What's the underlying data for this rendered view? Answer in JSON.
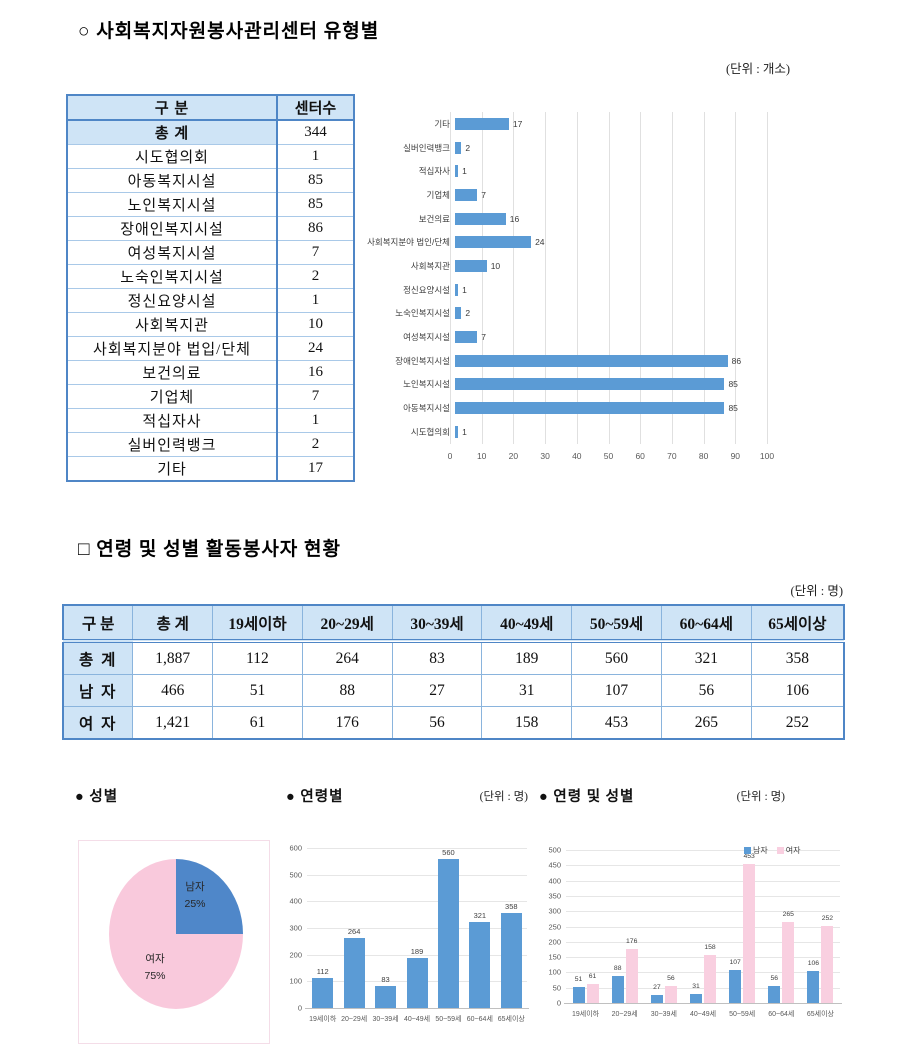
{
  "section1": {
    "title": "○ 사회복지자원봉사관리센터 유형별",
    "unit": "(단위 : 개소)",
    "table": {
      "headers": [
        "구   분",
        "센터수"
      ],
      "total_row": {
        "label": "총   계",
        "value": "344"
      },
      "rows": [
        {
          "label": "시도협의회",
          "value": "1"
        },
        {
          "label": "아동복지시설",
          "value": "85"
        },
        {
          "label": "노인복지시설",
          "value": "85"
        },
        {
          "label": "장애인복지시설",
          "value": "86"
        },
        {
          "label": "여성복지시설",
          "value": "7"
        },
        {
          "label": "노숙인복지시설",
          "value": "2"
        },
        {
          "label": "정신요양시설",
          "value": "1"
        },
        {
          "label": "사회복지관",
          "value": "10"
        },
        {
          "label": "사회복지분야 법입/단체",
          "value": "24"
        },
        {
          "label": "보건의료",
          "value": "16"
        },
        {
          "label": "기업체",
          "value": "7"
        },
        {
          "label": "적십자사",
          "value": "1"
        },
        {
          "label": "실버인력뱅크",
          "value": "2"
        },
        {
          "label": "기타",
          "value": "17"
        }
      ]
    }
  },
  "section2": {
    "title": "□ 연령 및 성별 활동봉사자 현황",
    "unit": "(단위 : 명)",
    "table": {
      "headers": [
        "구 분",
        "총 계",
        "19세이하",
        "20~29세",
        "30~39세",
        "40~49세",
        "50~59세",
        "60~64세",
        "65세이상"
      ],
      "rows": [
        {
          "label": "총 계",
          "values": [
            "1,887",
            "112",
            "264",
            "83",
            "189",
            "560",
            "321",
            "358"
          ]
        },
        {
          "label": "남 자",
          "values": [
            "466",
            "51",
            "88",
            "27",
            "31",
            "107",
            "56",
            "106"
          ]
        },
        {
          "label": "여 자",
          "values": [
            "1,421",
            "61",
            "176",
            "56",
            "158",
            "453",
            "265",
            "252"
          ]
        }
      ]
    }
  },
  "section3": {
    "pie_title": "● 성별",
    "bar_title": "● 연령별",
    "bar_unit": "(단위 : 명)",
    "grouped_title": "● 연령 및 성별",
    "grouped_unit": "(단위 : 명)"
  },
  "colors": {
    "bar_blue": "#5b9bd5",
    "pie_blue": "#4f87c9",
    "pink": "#f9cde0",
    "table_header_bg": "#cfe4f6",
    "table_border": "#4f86c6"
  },
  "chart_data": [
    {
      "id": "center-type",
      "type": "bar",
      "orientation": "horizontal",
      "title": "사회복지자원봉사관리센터 유형별",
      "unit_label": "(단위 : 개소)",
      "categories": [
        "기타",
        "실버인력뱅크",
        "적십자사",
        "기업체",
        "보건의료",
        "사회복지분야 법인/단체",
        "사회복지관",
        "정신요양시설",
        "노숙인복지시설",
        "여성복지시설",
        "장애인복지시설",
        "노인복지시설",
        "아동복지시설",
        "시도협의회"
      ],
      "values": [
        17,
        2,
        1,
        7,
        16,
        24,
        10,
        1,
        2,
        7,
        86,
        85,
        85,
        1
      ],
      "xlim": [
        0,
        100
      ],
      "xtick_step": 10,
      "bar_color": "#5b9bd5",
      "grid": true,
      "legend": "none"
    },
    {
      "id": "gender-pie",
      "type": "pie",
      "title": "성별",
      "slices": [
        {
          "label": "남자",
          "pct": 25,
          "color": "#4f87c9"
        },
        {
          "label": "여자",
          "pct": 75,
          "color": "#f9c9dc"
        }
      ]
    },
    {
      "id": "age",
      "type": "bar",
      "title": "연령별",
      "unit_label": "(단위 : 명)",
      "categories": [
        "19세이하",
        "20~29세",
        "30~39세",
        "40~49세",
        "50~59세",
        "60~64세",
        "65세이상"
      ],
      "values": [
        112,
        264,
        83,
        189,
        560,
        321,
        358
      ],
      "ylim": [
        0,
        600
      ],
      "ytick_step": 100,
      "bar_color": "#5b9bd5",
      "grid": true,
      "legend": "none"
    },
    {
      "id": "age-gender",
      "type": "bar",
      "grouped": true,
      "title": "연령 및 성별",
      "unit_label": "(단위 : 명)",
      "categories": [
        "19세이하",
        "20~29세",
        "30~39세",
        "40~49세",
        "50~59세",
        "60~64세",
        "65세이상"
      ],
      "series": [
        {
          "name": "남자",
          "color": "#5b9bd5",
          "values": [
            51,
            88,
            27,
            31,
            107,
            56,
            106
          ]
        },
        {
          "name": "여자",
          "color": "#f9cfe0",
          "values": [
            61,
            176,
            56,
            158,
            453,
            265,
            252
          ]
        }
      ],
      "ylim": [
        0,
        500
      ],
      "ytick_step": 50,
      "grid": true,
      "legend_position": "top-right"
    }
  ]
}
